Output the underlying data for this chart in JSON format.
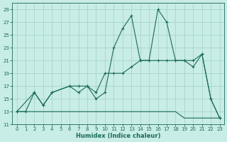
{
  "xlabel": "Humidex (Indice chaleur)",
  "bg_color": "#c8ece6",
  "grid_color": "#a0d0c8",
  "line_color": "#1a6b5a",
  "xlim": [
    -0.5,
    23.5
  ],
  "ylim": [
    11,
    30
  ],
  "yticks": [
    11,
    13,
    15,
    17,
    19,
    21,
    23,
    25,
    27,
    29
  ],
  "xticks": [
    0,
    1,
    2,
    3,
    4,
    5,
    6,
    7,
    8,
    9,
    10,
    11,
    12,
    13,
    14,
    15,
    16,
    17,
    18,
    19,
    20,
    21,
    22,
    23
  ],
  "line1_x": [
    0,
    1,
    2,
    3,
    4,
    6,
    7,
    8,
    9,
    10,
    11,
    12,
    13,
    14,
    15,
    16,
    17,
    18,
    19,
    20,
    21,
    22,
    23
  ],
  "line1_y": [
    13,
    13,
    16,
    14,
    16,
    17,
    16,
    17,
    15,
    16,
    23,
    26,
    28,
    21,
    21,
    29,
    27,
    21,
    21,
    20,
    22,
    15,
    12
  ],
  "line2_x": [
    0,
    2,
    3,
    4,
    6,
    7,
    8,
    9,
    10,
    11,
    12,
    13,
    14,
    15,
    16,
    17,
    18,
    19,
    20,
    21,
    22,
    23
  ],
  "line2_y": [
    13,
    16,
    14,
    16,
    17,
    17,
    17,
    16,
    19,
    19,
    19,
    20,
    21,
    21,
    21,
    21,
    21,
    21,
    21,
    22,
    15,
    12
  ],
  "line3_x": [
    0,
    1,
    2,
    3,
    4,
    5,
    6,
    7,
    8,
    9,
    10,
    11,
    12,
    13,
    14,
    15,
    16,
    17,
    18,
    19,
    20,
    21,
    22,
    23
  ],
  "line3_y": [
    13,
    13,
    13,
    13,
    13,
    13,
    13,
    13,
    13,
    13,
    13,
    13,
    13,
    13,
    13,
    13,
    13,
    13,
    13,
    12,
    12,
    12,
    12,
    12
  ]
}
